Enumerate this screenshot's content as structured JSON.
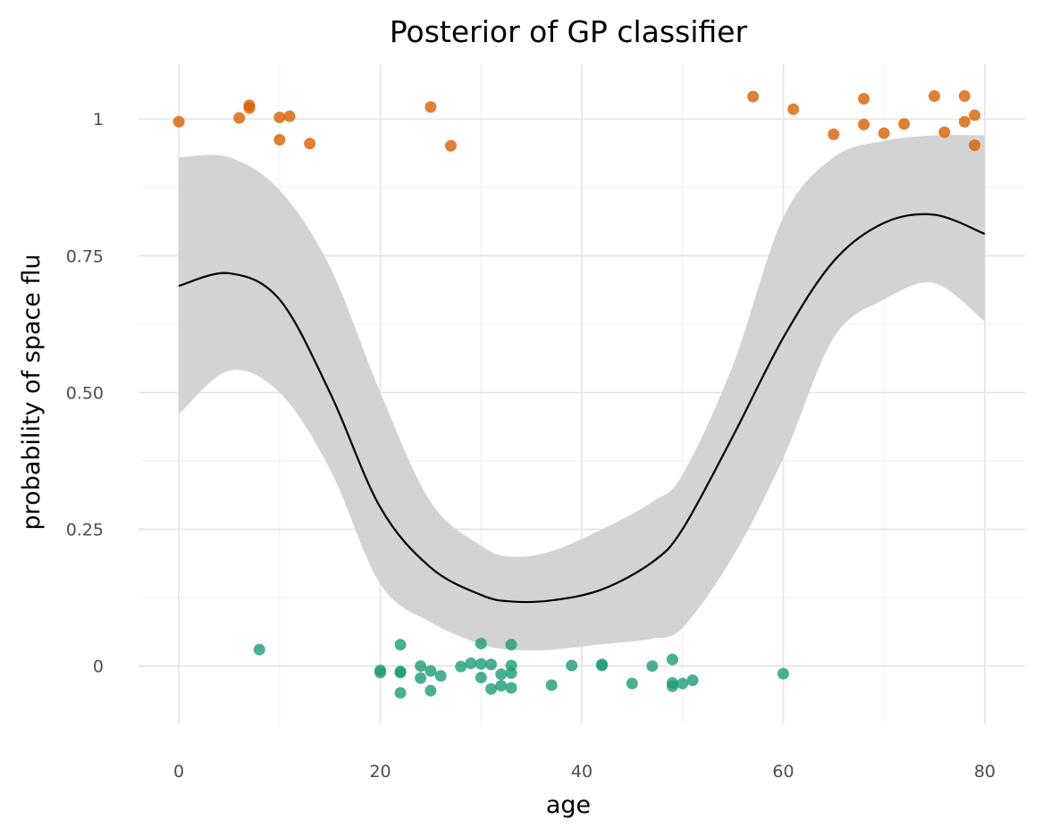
{
  "chart_data": {
    "type": "scatter",
    "title": "Posterior of GP classifier",
    "xlabel": "age",
    "ylabel": "probability of space flu",
    "xlim": [
      -4,
      84
    ],
    "ylim": [
      -0.105,
      1.1
    ],
    "x_ticks": [
      0,
      20,
      40,
      60,
      80
    ],
    "x_tick_labels": [
      "0",
      "20",
      "40",
      "60",
      "80"
    ],
    "y_ticks": [
      0,
      0.25,
      0.5,
      0.75,
      1
    ],
    "y_tick_labels": [
      "0",
      "0.25",
      "0.50",
      "0.75",
      "1"
    ],
    "grid": true,
    "colors": {
      "band": "#d3d3d3",
      "mean_line": "#000000",
      "positive": "#d95f02",
      "negative": "#1b9e77"
    },
    "posterior_mean": {
      "x": [
        0,
        5,
        10,
        15,
        20,
        25,
        30,
        33,
        37,
        42,
        47,
        50,
        55,
        60,
        65,
        70,
        75,
        80
      ],
      "y": [
        0.695,
        0.718,
        0.67,
        0.5,
        0.29,
        0.18,
        0.13,
        0.118,
        0.12,
        0.14,
        0.19,
        0.25,
        0.42,
        0.6,
        0.74,
        0.81,
        0.825,
        0.79
      ]
    },
    "credible_band": {
      "x": [
        0,
        5,
        10,
        15,
        20,
        25,
        30,
        33,
        37,
        42,
        47,
        50,
        55,
        60,
        65,
        70,
        75,
        80
      ],
      "lower": [
        0.46,
        0.54,
        0.5,
        0.36,
        0.15,
        0.08,
        0.04,
        0.03,
        0.03,
        0.04,
        0.05,
        0.07,
        0.2,
        0.38,
        0.6,
        0.67,
        0.7,
        0.63
      ],
      "upper": [
        0.93,
        0.93,
        0.87,
        0.73,
        0.5,
        0.3,
        0.22,
        0.2,
        0.21,
        0.25,
        0.3,
        0.35,
        0.55,
        0.82,
        0.93,
        0.96,
        0.97,
        0.97
      ]
    },
    "positive_points": [
      {
        "x": 0,
        "y": 0.995
      },
      {
        "x": 6,
        "y": 1.002
      },
      {
        "x": 7,
        "y": 1.02
      },
      {
        "x": 7,
        "y": 1.025
      },
      {
        "x": 10,
        "y": 1.003
      },
      {
        "x": 10,
        "y": 0.962
      },
      {
        "x": 11,
        "y": 1.005
      },
      {
        "x": 13,
        "y": 0.955
      },
      {
        "x": 25,
        "y": 1.022
      },
      {
        "x": 27,
        "y": 0.951
      },
      {
        "x": 57,
        "y": 1.041
      },
      {
        "x": 61,
        "y": 1.018
      },
      {
        "x": 65,
        "y": 0.972
      },
      {
        "x": 68,
        "y": 1.037
      },
      {
        "x": 68,
        "y": 0.99
      },
      {
        "x": 70,
        "y": 0.974
      },
      {
        "x": 72,
        "y": 0.991
      },
      {
        "x": 75,
        "y": 1.042
      },
      {
        "x": 76,
        "y": 0.976
      },
      {
        "x": 78,
        "y": 1.042
      },
      {
        "x": 78,
        "y": 0.995
      },
      {
        "x": 79,
        "y": 1.007
      },
      {
        "x": 79,
        "y": 0.952
      }
    ],
    "negative_points": [
      {
        "x": 8,
        "y": 0.03
      },
      {
        "x": 20,
        "y": -0.008
      },
      {
        "x": 20,
        "y": -0.012
      },
      {
        "x": 22,
        "y": 0.039
      },
      {
        "x": 22,
        "y": -0.01
      },
      {
        "x": 22,
        "y": -0.012
      },
      {
        "x": 22,
        "y": -0.049
      },
      {
        "x": 24,
        "y": 0.0
      },
      {
        "x": 24,
        "y": -0.022
      },
      {
        "x": 25,
        "y": -0.009
      },
      {
        "x": 25,
        "y": -0.045
      },
      {
        "x": 26,
        "y": -0.018
      },
      {
        "x": 28,
        "y": -0.001
      },
      {
        "x": 29,
        "y": 0.005
      },
      {
        "x": 30,
        "y": 0.041
      },
      {
        "x": 30,
        "y": 0.004
      },
      {
        "x": 30,
        "y": -0.021
      },
      {
        "x": 31,
        "y": 0.003
      },
      {
        "x": 31,
        "y": -0.042
      },
      {
        "x": 32,
        "y": -0.015
      },
      {
        "x": 32,
        "y": -0.036
      },
      {
        "x": 33,
        "y": 0.039
      },
      {
        "x": 33,
        "y": 0.001
      },
      {
        "x": 33,
        "y": -0.013
      },
      {
        "x": 33,
        "y": -0.04
      },
      {
        "x": 37,
        "y": -0.035
      },
      {
        "x": 39,
        "y": 0.001
      },
      {
        "x": 42,
        "y": 0.003
      },
      {
        "x": 42,
        "y": 0.001
      },
      {
        "x": 45,
        "y": -0.032
      },
      {
        "x": 47,
        "y": 0.0
      },
      {
        "x": 49,
        "y": 0.012
      },
      {
        "x": 49,
        "y": -0.031
      },
      {
        "x": 49,
        "y": -0.037
      },
      {
        "x": 50,
        "y": -0.032
      },
      {
        "x": 51,
        "y": -0.026
      },
      {
        "x": 60,
        "y": -0.014
      }
    ]
  }
}
